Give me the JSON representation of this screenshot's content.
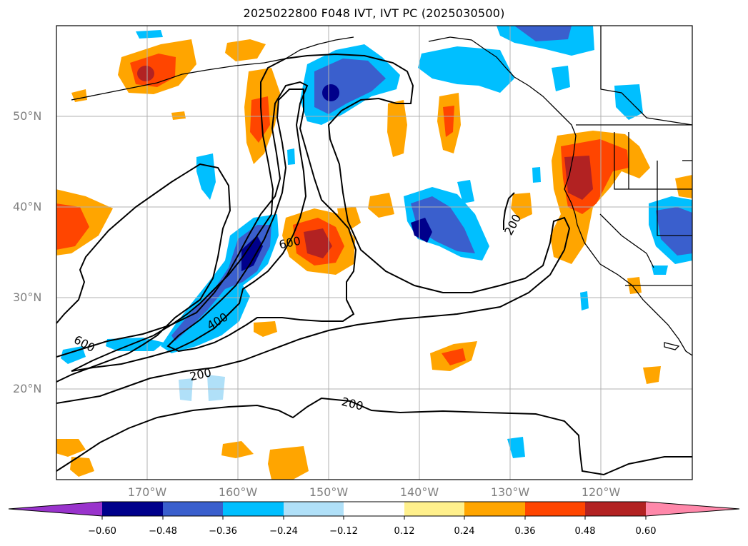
{
  "title": "2025022800 F048 IVT, IVT PC (2025030500)",
  "axes": {
    "lat_labels": [
      "50°N",
      "40°N",
      "30°N",
      "20°N"
    ],
    "lon_labels": [
      "170°W",
      "160°W",
      "150°W",
      "140°W",
      "130°W",
      "120°W"
    ]
  },
  "contour_labels": [
    "600",
    "200",
    "600",
    "400",
    "200",
    "200"
  ],
  "colorbar": {
    "tick_labels": [
      "−0.60",
      "−0.48",
      "−0.36",
      "−0.24",
      "−0.12",
      "0.12",
      "0.24",
      "0.36",
      "0.48",
      "0.60"
    ],
    "colors": [
      "#9933cc",
      "#00008b",
      "#3a5fcd",
      "#00bfff",
      "#b0e0f8",
      "#ffffff",
      "#fff08c",
      "#ffa500",
      "#ff4500",
      "#b22222",
      "#ff88aa"
    ]
  }
}
